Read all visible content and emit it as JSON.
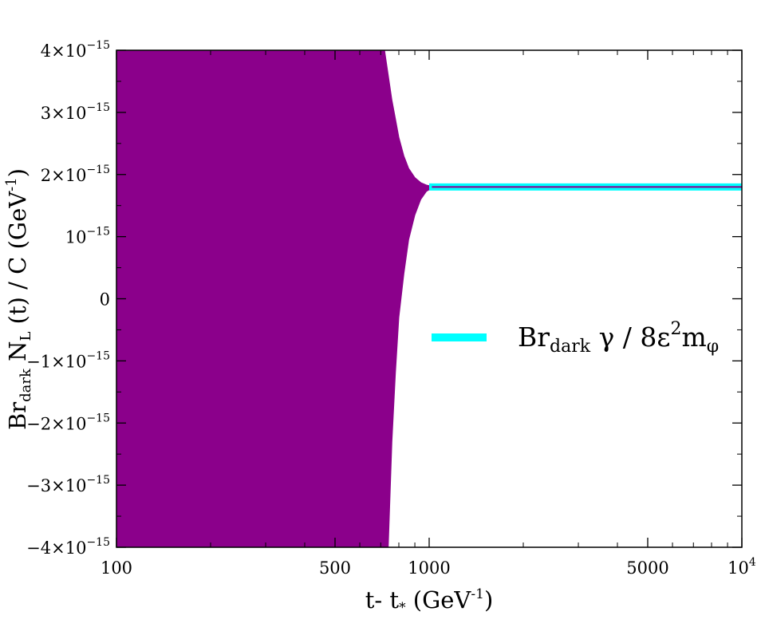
{
  "chart_data": {
    "type": "area",
    "x_scale": "log",
    "xlim": [
      100,
      10000
    ],
    "ylim": [
      -4e-15,
      4e-15
    ],
    "grid": false,
    "legend_position": "right",
    "xlabel": {
      "main": "t- t",
      "sub": "*",
      "unit": " (GeV",
      "sup": "-1",
      "close": ")"
    },
    "ylabel": {
      "pre": "Br",
      "sub1": "dark",
      "mid": " N",
      "sub2": "L",
      "post": " (t)  / C (GeV",
      "sup": "-1",
      "close": ")"
    },
    "x_ticks": [
      {
        "value": 100,
        "label": "100"
      },
      {
        "value": 500,
        "label": "500"
      },
      {
        "value": 1000,
        "label": "1000"
      },
      {
        "value": 5000,
        "label": "5000"
      },
      {
        "value": 10000,
        "label": "10",
        "exp": "4"
      }
    ],
    "y_ticks": [
      {
        "value": 4e-15,
        "mant": "4×10",
        "exp": "−15"
      },
      {
        "value": 3e-15,
        "mant": "3×10",
        "exp": "−15"
      },
      {
        "value": 2e-15,
        "mant": "2×10",
        "exp": "−15"
      },
      {
        "value": 1e-15,
        "mant": "10",
        "exp": "−15"
      },
      {
        "value": 0,
        "mant": "0",
        "exp": ""
      },
      {
        "value": -1e-15,
        "mant": "−1×10",
        "exp": "−15"
      },
      {
        "value": -2e-15,
        "mant": "−2×10",
        "exp": "−15"
      },
      {
        "value": -3e-15,
        "mant": "−3×10",
        "exp": "−15"
      },
      {
        "value": -4e-15,
        "mant": "−4×10",
        "exp": "−15"
      }
    ],
    "series": [
      {
        "kind": "envelope",
        "color": "#8b008b",
        "x": [
          100,
          700,
          720,
          740,
          760,
          780,
          800,
          830,
          860,
          900,
          940,
          980,
          1020,
          1100,
          1200,
          10000
        ],
        "upper": [
          4e-15,
          4e-15,
          4e-15,
          3.6e-15,
          3.2e-15,
          2.9e-15,
          2.6e-15,
          2.3e-15,
          2.1e-15,
          1.95e-15,
          1.87e-15,
          1.83e-15,
          1.81e-15,
          1.8e-15,
          1.8e-15,
          1.8e-15
        ],
        "lower": [
          -4e-15,
          -4e-15,
          -4e-15,
          -4e-15,
          -2.3e-15,
          -1.2e-15,
          -3e-16,
          4e-16,
          9.5e-16,
          1.35e-15,
          1.6e-15,
          1.73e-15,
          1.78e-15,
          1.8e-15,
          1.8e-15,
          1.8e-15
        ]
      },
      {
        "kind": "line",
        "name": {
          "pre": "Br",
          "sub": "dark",
          "mid": " γ  / 8ε",
          "sup": "2",
          "m": "m",
          "sub2": "φ"
        },
        "color": "#00ffff",
        "x": [
          1000,
          10000
        ],
        "y": [
          1.8e-15,
          1.8e-15
        ]
      }
    ]
  }
}
